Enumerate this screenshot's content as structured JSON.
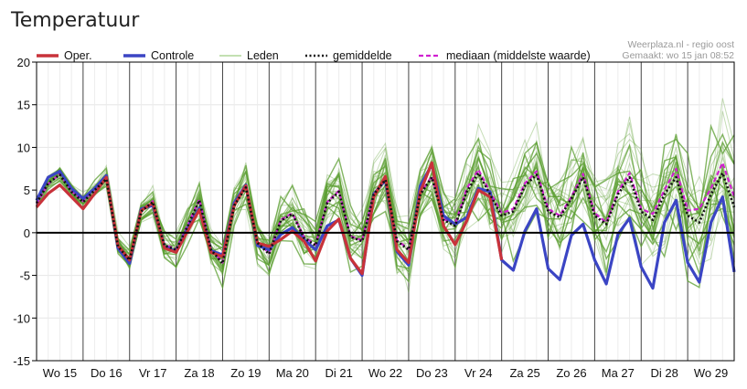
{
  "header": {
    "title": "Temperatuur"
  },
  "credits": {
    "line1": "Weerplaza.nl - regio oost",
    "line2": "Gemaakt: wo 15 jan 08:52"
  },
  "colors": {
    "oper": "#c8323a",
    "controle": "#3b45c4",
    "leden": "#5a9e2f",
    "gemiddelde": "#111111",
    "mediaan": "#d020d0"
  },
  "chart_data": {
    "type": "line",
    "title": "Temperatuur",
    "ylim": [
      -15,
      20
    ],
    "yticks": [
      -15,
      -10,
      -5,
      0,
      5,
      10,
      15,
      20
    ],
    "x_range_days": [
      0,
      15
    ],
    "day_labels": [
      "Wo 15",
      "Do 16",
      "Vr 17",
      "Za 18",
      "Zo 19",
      "Ma 20",
      "Di 21",
      "Wo 22",
      "Do 23",
      "Vr 24",
      "Za 25",
      "Zo 26",
      "Ma 27",
      "Di 28",
      "Wo 29"
    ],
    "legend": {
      "placement": "top",
      "entries": [
        "Oper.",
        "Controle",
        "Leden",
        "gemiddelde",
        "mediaan (middelste waarde)"
      ]
    },
    "grid": true,
    "series": [
      {
        "name": "Oper.",
        "x": [
          0,
          0.25,
          0.5,
          0.75,
          1,
          1.25,
          1.5,
          1.75,
          2,
          2.25,
          2.5,
          2.75,
          3,
          3.25,
          3.5,
          3.75,
          4,
          4.25,
          4.5,
          4.75,
          5,
          5.25,
          5.5,
          5.75,
          6,
          6.25,
          6.5,
          6.75,
          7,
          7.25,
          7.5,
          7.75,
          8,
          8.25,
          8.5,
          8.75,
          9,
          9.25,
          9.5,
          9.75,
          10
        ],
        "y": [
          3,
          4.6,
          5.6,
          4.2,
          2.8,
          4.6,
          6.5,
          -1.5,
          -3.2,
          2.6,
          3.5,
          -1.8,
          -2.3,
          0.2,
          2.7,
          -2.3,
          -2.8,
          3.2,
          5.5,
          -1.2,
          -1.6,
          -0.8,
          0.2,
          -1,
          -3.3,
          0.2,
          1.6,
          -3,
          -4.8,
          4.2,
          6.6,
          -2,
          -3.5,
          4.8,
          8.2,
          0.8,
          -1.4,
          1.4,
          5,
          4.2,
          -3.2
        ]
      },
      {
        "name": "Controle",
        "x": [
          0,
          0.25,
          0.5,
          0.75,
          1,
          1.25,
          1.5,
          1.75,
          2,
          2.25,
          2.5,
          2.75,
          3,
          3.25,
          3.5,
          3.75,
          4,
          4.25,
          4.5,
          4.75,
          5,
          5.25,
          5.5,
          5.75,
          6,
          6.25,
          6.5,
          6.75,
          7,
          7.25,
          7.5,
          7.75,
          8,
          8.25,
          8.5,
          8.75,
          9,
          9.25,
          9.5,
          9.75,
          10,
          10.25,
          10.5,
          10.75,
          11,
          11.25,
          11.5,
          11.75,
          12,
          12.25,
          12.5,
          12.75,
          13,
          13.25,
          13.5,
          13.75,
          14,
          14.25,
          14.5,
          14.75,
          15
        ],
        "y": [
          3.8,
          6.5,
          7.2,
          5.2,
          4,
          5.2,
          6.7,
          -1.8,
          -3.6,
          2.8,
          3.2,
          -1.6,
          -2.2,
          0.5,
          2.9,
          -2.1,
          -2.6,
          3.5,
          5.6,
          -1.5,
          -2,
          -0.2,
          0.6,
          -0.8,
          -2,
          0.8,
          1.5,
          -3,
          -5,
          4.5,
          6.2,
          -2.2,
          -3.8,
          5.5,
          8,
          2,
          1,
          1.8,
          5.2,
          4.8,
          -3.2,
          -4.4,
          0.2,
          2.8,
          -4.2,
          -5.5,
          -0.3,
          1,
          -3.2,
          -6,
          -0.2,
          1.7,
          -4,
          -6.5,
          1.2,
          3.8,
          -3.5,
          -5.8,
          1.2,
          4.2,
          -4.6
        ]
      },
      {
        "name": "gemiddelde",
        "x": [
          0,
          0.25,
          0.5,
          0.75,
          1,
          1.25,
          1.5,
          1.75,
          2,
          2.25,
          2.5,
          2.75,
          3,
          3.25,
          3.5,
          3.75,
          4,
          4.25,
          4.5,
          4.75,
          5,
          5.25,
          5.5,
          5.75,
          6,
          6.25,
          6.5,
          6.75,
          7,
          7.25,
          7.5,
          7.75,
          8,
          8.25,
          8.5,
          8.75,
          9,
          9.25,
          9.5,
          9.75,
          10,
          10.25,
          10.5,
          10.75,
          11,
          11.25,
          11.5,
          11.75,
          12,
          12.25,
          12.5,
          12.75,
          13,
          13.25,
          13.5,
          13.75,
          14,
          14.25,
          14.5,
          14.75,
          15
        ],
        "y": [
          3.5,
          5.8,
          6.8,
          4.8,
          3.6,
          5,
          6.3,
          -1.6,
          -3.2,
          2.5,
          3.6,
          -1.5,
          -2,
          0.8,
          3.8,
          -2,
          -3.6,
          3.2,
          5.3,
          -1.2,
          -2.5,
          1.4,
          2.2,
          -0.6,
          -1.5,
          3.5,
          4.8,
          -0.5,
          -1,
          4.5,
          6.2,
          -1,
          -2,
          4.5,
          6.5,
          1.5,
          0.8,
          4.8,
          7,
          4.5,
          2,
          2.5,
          5.5,
          6.8,
          2.5,
          1.8,
          4,
          6.5,
          2,
          1,
          4.5,
          6.5,
          2.5,
          1.5,
          4.5,
          6.5,
          2,
          1.2,
          4.5,
          7,
          3
        ]
      },
      {
        "name": "mediaan (middelste waarde)",
        "x": [
          0,
          0.25,
          0.5,
          0.75,
          1,
          1.25,
          1.5,
          1.75,
          2,
          2.25,
          2.5,
          2.75,
          3,
          3.25,
          3.5,
          3.75,
          4,
          4.25,
          4.5,
          4.75,
          5,
          5.25,
          5.5,
          5.75,
          6,
          6.25,
          6.5,
          6.75,
          7,
          7.25,
          7.5,
          7.75,
          8,
          8.25,
          8.5,
          8.75,
          9,
          9.25,
          9.5,
          9.75,
          10,
          10.25,
          10.5,
          10.75,
          11,
          11.25,
          11.5,
          11.75,
          12,
          12.25,
          12.5,
          12.75,
          13,
          13.25,
          13.5,
          13.75,
          14,
          14.25,
          14.5,
          14.75,
          15
        ],
        "y": [
          3.4,
          5.7,
          6.9,
          4.9,
          3.7,
          5.1,
          6.4,
          -1.5,
          -3.1,
          2.6,
          3.7,
          -1.4,
          -1.9,
          0.9,
          3.9,
          -1.9,
          -3.5,
          3.3,
          5.4,
          -1.1,
          -2.4,
          1.5,
          2.3,
          -0.5,
          -1.4,
          3.6,
          4.9,
          -0.4,
          -0.9,
          4.6,
          6.3,
          -0.9,
          -1.9,
          4.6,
          6.6,
          1.6,
          1,
          5.2,
          7.4,
          4.8,
          2.3,
          2.8,
          5.8,
          7.2,
          2.8,
          2,
          4.2,
          6.9,
          2.3,
          1.2,
          4.8,
          7,
          2.8,
          2.2,
          5,
          7.5,
          2.6,
          2.8,
          5.2,
          8.2,
          4.2
        ]
      }
    ]
  }
}
